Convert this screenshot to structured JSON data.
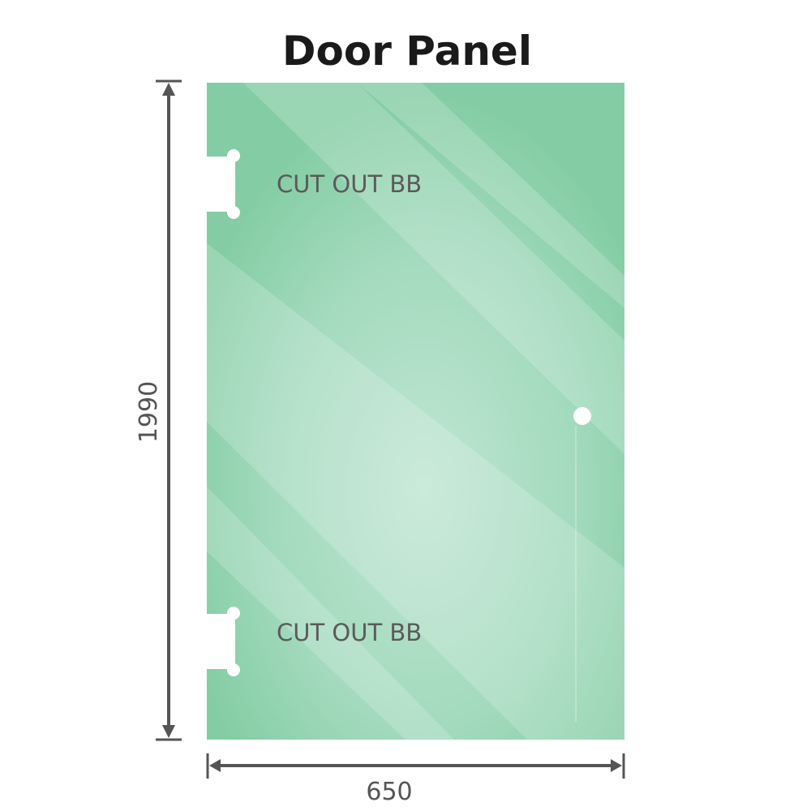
{
  "title": "Door Panel",
  "height_label": "1990",
  "width_label": "650",
  "cutouts": [
    {
      "label": "CUT OUT BB"
    },
    {
      "label": "CUT OUT BB"
    }
  ],
  "colors": {
    "glass": "#86cfa6",
    "glass_light": "#bde4cf",
    "dimension": "#555555",
    "text": "#5a5a5a"
  }
}
